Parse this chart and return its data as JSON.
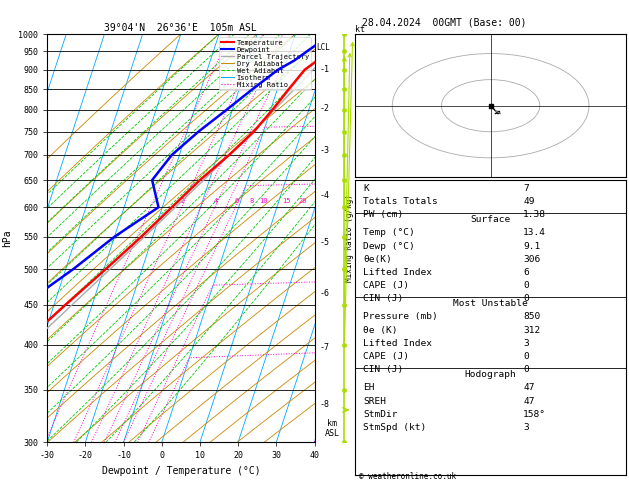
{
  "title_left": "39°04'N  26°36'E  105m ASL",
  "title_right": "28.04.2024  00GMT (Base: 00)",
  "xlabel": "Dewpoint / Temperature (°C)",
  "ylabel_left": "hPa",
  "pressure_ticks": [
    300,
    350,
    400,
    450,
    500,
    550,
    600,
    650,
    700,
    750,
    800,
    850,
    900,
    950,
    1000
  ],
  "temp_ticks": [
    -30,
    -20,
    -10,
    0,
    10,
    20,
    30,
    40
  ],
  "t_min": -30,
  "t_max": 40,
  "p_min": 300,
  "p_max": 1000,
  "skew": 35,
  "legend_entries": [
    {
      "label": "Temperature",
      "color": "#ff0000",
      "linestyle": "-",
      "lw": 1.5
    },
    {
      "label": "Dewpoint",
      "color": "#0000ff",
      "linestyle": "-",
      "lw": 1.5
    },
    {
      "label": "Parcel Trajectory",
      "color": "#aaaaaa",
      "linestyle": "-",
      "lw": 1.0
    },
    {
      "label": "Dry Adiabat",
      "color": "#cc8800",
      "linestyle": "-",
      "lw": 0.7
    },
    {
      "label": "Wet Adiabat",
      "color": "#00cc00",
      "linestyle": "--",
      "lw": 0.7
    },
    {
      "label": "Isotherm",
      "color": "#00aaff",
      "linestyle": "-",
      "lw": 0.7
    },
    {
      "label": "Mixing Ratio",
      "color": "#ff00cc",
      "linestyle": ":",
      "lw": 0.8
    }
  ],
  "isotherm_color": "#00aaff",
  "dry_adiabat_color": "#cc8800",
  "wet_adiabat_color": "#00cc00",
  "mixing_ratio_color": "#ff00cc",
  "temp_color": "#ff0000",
  "dewp_color": "#0000ff",
  "parcel_color": "#aaaaaa",
  "wind_color": "#aadd00",
  "isobar_color": "#000000",
  "bg_color": "#ffffff",
  "km_asl": [
    1,
    2,
    3,
    4,
    5,
    6,
    7,
    8
  ],
  "km_press": [
    900,
    802,
    710,
    622,
    540,
    465,
    397,
    335
  ],
  "mr_vals": [
    1,
    2,
    3,
    4,
    5,
    6,
    8,
    10,
    15,
    20,
    25
  ],
  "mr_label_vals": [
    2,
    4,
    6,
    8,
    10,
    15,
    20,
    25
  ],
  "mr_label_p": 605,
  "K": 7,
  "TT": 49,
  "PW": 1.38,
  "surf_temp": 13.4,
  "surf_dewp": 9.1,
  "surf_thetae": 306,
  "surf_li": 6,
  "surf_cape": 0,
  "surf_cin": 0,
  "mu_press": 850,
  "mu_thetae": 312,
  "mu_li": 3,
  "mu_cape": 0,
  "mu_cin": 0,
  "hodo_eh": 47,
  "hodo_sreh": 47,
  "hodo_stmdir": "158°",
  "hodo_stmspd": 3,
  "copyright": "© weatheronline.co.uk",
  "lcl_label": "LCL",
  "lcl_press": 960
}
